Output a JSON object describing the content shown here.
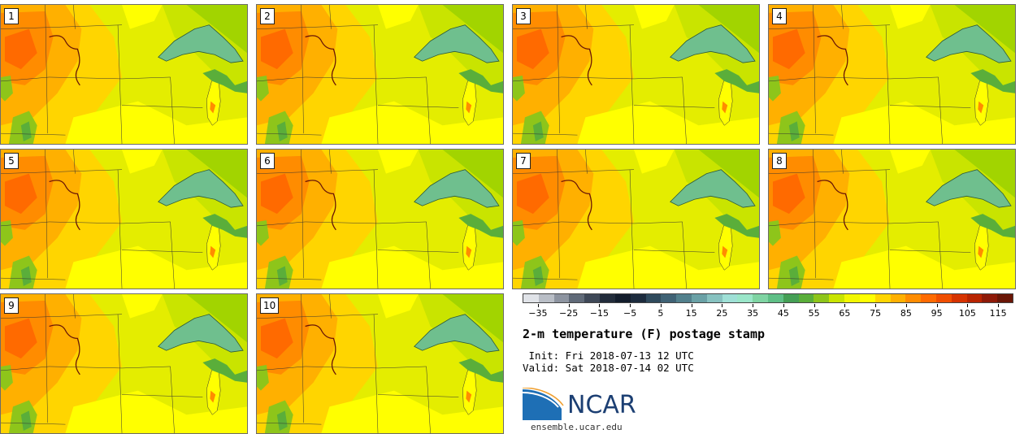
{
  "panels": [
    {
      "label": "1"
    },
    {
      "label": "2"
    },
    {
      "label": "3"
    },
    {
      "label": "4"
    },
    {
      "label": "5"
    },
    {
      "label": "6"
    },
    {
      "label": "7"
    },
    {
      "label": "8"
    },
    {
      "label": "9"
    },
    {
      "label": "10"
    }
  ],
  "colorbar": {
    "colors": [
      "#e0e3e8",
      "#b9bec6",
      "#8d94a0",
      "#606a78",
      "#3e4857",
      "#222c3b",
      "#131d2c",
      "#1c2b3d",
      "#2f4a5c",
      "#3f6275",
      "#52808c",
      "#6aa1a6",
      "#87c2c0",
      "#9fe0d6",
      "#9ae6c9",
      "#7fd4a3",
      "#5fbf86",
      "#459f55",
      "#5aae3a",
      "#8ec51a",
      "#c9e400",
      "#f2f700",
      "#ffff00",
      "#ffd500",
      "#ffb000",
      "#ff8c00",
      "#ff6a00",
      "#f04e00",
      "#d63300",
      "#b82400",
      "#8e1a08",
      "#6a1606"
    ],
    "ticks": [
      "−35",
      "−25",
      "−15",
      "−5",
      "5",
      "15",
      "25",
      "35",
      "45",
      "55",
      "65",
      "75",
      "85",
      "95",
      "105",
      "115"
    ],
    "range": [
      -40,
      120
    ]
  },
  "title": "2-m temperature (F) postage stamp",
  "init": " Init: Fri 2018-07-13 12 UTC",
  "valid": "Valid: Sat 2018-07-14 02 UTC",
  "logo": {
    "text": "NCAR",
    "color": "#1c3f73",
    "accent": "#1e6fb5"
  },
  "site": "ensemble.ucar.edu"
}
